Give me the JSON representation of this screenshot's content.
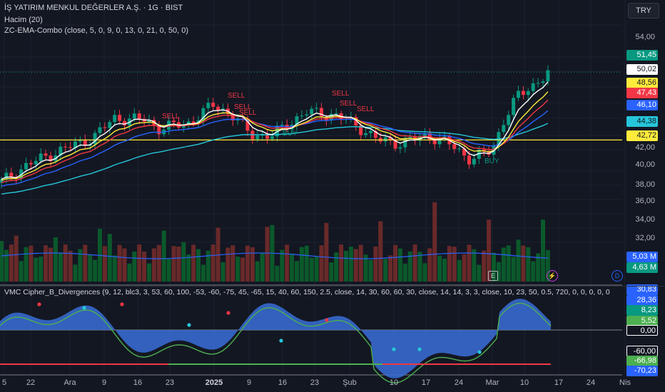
{
  "header": {
    "title": "İŞ YATIRIM MENKUL DEĞERLER A.Ş. · 1G · BIST",
    "volume_indicator": "Hacim (20)",
    "ema_indicator": "ZC-EMA-Combo (close, 5, 0, 9, 0, 13, 0, 21, 0, 50, 0)",
    "currency": "TRY"
  },
  "oscillator": {
    "title": "VMC Cipher_B_Divergences (9, 12, blc3, 3, 53, 60, 100, -53, -60, -75, 45, -65, 15, 40, 60, 150, 2.5, close, 14, 30, 60, 60, 30, close, 14, 14, 3, 3, close, 10, 23, 50, 0.5, 720, 0, 0, 0, 0, 0"
  },
  "price_axis": [
    "54,00",
    "52,00",
    "42,00",
    "40,00",
    "38,00",
    "36,00",
    "34,00",
    "32,00",
    "30,00"
  ],
  "price_tags": [
    {
      "value": "51,45",
      "bg": "#089981",
      "fg": "#ffffff"
    },
    {
      "value": "50,02",
      "bg": "#ffffff",
      "fg": "#131722"
    },
    {
      "value": "48,56",
      "bg": "#ffeb3b",
      "fg": "#131722"
    },
    {
      "value": "47,43",
      "bg": "#f23645",
      "fg": "#ffffff"
    },
    {
      "value": "46,10",
      "bg": "#2962ff",
      "fg": "#ffffff"
    },
    {
      "value": "44,38",
      "bg": "#26c6da",
      "fg": "#131722"
    },
    {
      "value": "42,72",
      "bg": "#ffeb3b",
      "fg": "#131722"
    }
  ],
  "volume_tags": [
    {
      "value": "5,03 M",
      "bg": "#2962ff",
      "fg": "#ffffff"
    },
    {
      "value": "4,63 M",
      "bg": "#089981",
      "fg": "#ffffff"
    }
  ],
  "oscillator_tags": [
    {
      "value": "30,83",
      "bg": "#2962ff",
      "fg": "#ffffff"
    },
    {
      "value": "28,36",
      "bg": "#2962ff",
      "fg": "#ffffff"
    },
    {
      "value": "8,23",
      "bg": "#089981",
      "fg": "#ffffff"
    },
    {
      "value": "5,52",
      "bg": "#4caf50",
      "fg": "#ffffff"
    },
    {
      "value": "0,00",
      "bg": "#131722",
      "fg": "#ffffff"
    },
    {
      "value": "-60,00",
      "bg": "#131722",
      "fg": "#ffffff"
    },
    {
      "value": "-66,98",
      "bg": "#4caf50",
      "fg": "#ffffff"
    },
    {
      "value": "-70,23",
      "bg": "#2962ff",
      "fg": "#ffffff"
    }
  ],
  "time_axis": [
    "5",
    "22",
    "Ara",
    "9",
    "16",
    "23",
    "2025",
    "9",
    "16",
    "23",
    "Şub",
    "10",
    "17",
    "24",
    "Mar",
    "10",
    "17",
    "24",
    "Nis"
  ],
  "signals": {
    "sell": [
      "SELL",
      "SELL",
      "SELL",
      "SELL",
      "SELL",
      "SELL",
      "SELL"
    ],
    "buy": [
      "BUY",
      "BUY"
    ]
  },
  "badges": {
    "earnings": "E",
    "dividend": "D"
  },
  "colors": {
    "bull": "#089981",
    "bear": "#f23645",
    "ema5": "#ffffff",
    "ema9": "#ffeb3b",
    "ema13": "#f23645",
    "ema21": "#2962ff",
    "ema50": "#26c6da",
    "hline": "#ffeb3b"
  }
}
